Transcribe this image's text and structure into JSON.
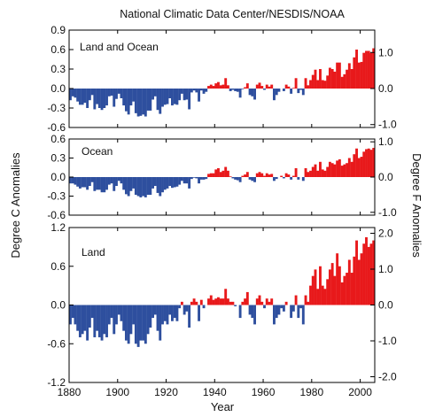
{
  "colors": {
    "positive": "#e8191b",
    "negative": "#2e4f9e",
    "frame": "#000000"
  },
  "chart_data": {
    "type": "bar",
    "title": "National Climatic Data Center/NESDIS/NOAA",
    "xlabel": "Year",
    "ylabel_left": "Degree C Anomalies",
    "ylabel_right": "Degree F Anomalies",
    "xlim": [
      1880,
      2006
    ],
    "x_ticks": [
      1880,
      1900,
      1920,
      1940,
      1960,
      1980,
      2000
    ],
    "x_tick_labels": [
      "1880",
      "1900",
      "1920",
      "1940",
      "1960",
      "1980",
      "2000"
    ],
    "years": [
      1880,
      1881,
      1882,
      1883,
      1884,
      1885,
      1886,
      1887,
      1888,
      1889,
      1890,
      1891,
      1892,
      1893,
      1894,
      1895,
      1896,
      1897,
      1898,
      1899,
      1900,
      1901,
      1902,
      1903,
      1904,
      1905,
      1906,
      1907,
      1908,
      1909,
      1910,
      1911,
      1912,
      1913,
      1914,
      1915,
      1916,
      1917,
      1918,
      1919,
      1920,
      1921,
      1922,
      1923,
      1924,
      1925,
      1926,
      1927,
      1928,
      1929,
      1930,
      1931,
      1932,
      1933,
      1934,
      1935,
      1936,
      1937,
      1938,
      1939,
      1940,
      1941,
      1942,
      1943,
      1944,
      1945,
      1946,
      1947,
      1948,
      1949,
      1950,
      1951,
      1952,
      1953,
      1954,
      1955,
      1956,
      1957,
      1958,
      1959,
      1960,
      1961,
      1962,
      1963,
      1964,
      1965,
      1966,
      1967,
      1968,
      1969,
      1970,
      1971,
      1972,
      1973,
      1974,
      1975,
      1976,
      1977,
      1978,
      1979,
      1980,
      1981,
      1982,
      1983,
      1984,
      1985,
      1986,
      1987,
      1988,
      1989,
      1990,
      1991,
      1992,
      1993,
      1994,
      1995,
      1996,
      1997,
      1998,
      1999,
      2000,
      2001,
      2002,
      2003,
      2004,
      2005
    ],
    "panels": [
      {
        "name": "Land and Ocean",
        "ylim": [
          -0.6,
          0.9
        ],
        "y_ticks": [
          -0.6,
          -0.3,
          0.0,
          0.3,
          0.6,
          0.9
        ],
        "y_tick_labels": [
          "-0.6",
          "-0.3",
          "0.0",
          "0.3",
          "0.6",
          "0.9"
        ],
        "right_ticks_f": [
          -1.0,
          0.0,
          1.0
        ],
        "right_tick_labels": [
          "-1.0",
          "0.0",
          "1.0"
        ],
        "values": [
          -0.18,
          -0.12,
          -0.14,
          -0.2,
          -0.25,
          -0.25,
          -0.22,
          -0.3,
          -0.18,
          -0.1,
          -0.32,
          -0.24,
          -0.3,
          -0.33,
          -0.3,
          -0.26,
          -0.12,
          -0.11,
          -0.28,
          -0.16,
          -0.08,
          -0.15,
          -0.26,
          -0.35,
          -0.4,
          -0.26,
          -0.2,
          -0.38,
          -0.43,
          -0.42,
          -0.4,
          -0.43,
          -0.34,
          -0.34,
          -0.17,
          -0.12,
          -0.33,
          -0.39,
          -0.28,
          -0.25,
          -0.24,
          -0.15,
          -0.26,
          -0.24,
          -0.25,
          -0.18,
          -0.08,
          -0.18,
          -0.17,
          -0.32,
          -0.06,
          -0.03,
          -0.06,
          -0.2,
          -0.03,
          -0.08,
          -0.05,
          0.04,
          0.06,
          0.04,
          0.08,
          0.1,
          0.05,
          0.06,
          0.16,
          0.05,
          -0.04,
          -0.02,
          -0.04,
          -0.05,
          -0.14,
          -0.01,
          0.02,
          0.08,
          -0.1,
          -0.12,
          -0.17,
          0.06,
          0.09,
          0.04,
          -0.02,
          0.06,
          0.03,
          0.06,
          -0.18,
          -0.1,
          -0.05,
          0.0,
          -0.04,
          0.06,
          0.03,
          -0.08,
          0.01,
          0.16,
          -0.07,
          -0.02,
          -0.1,
          0.16,
          0.05,
          0.13,
          0.21,
          0.29,
          0.13,
          0.3,
          0.13,
          0.12,
          0.2,
          0.32,
          0.3,
          0.26,
          0.4,
          0.4,
          0.18,
          0.22,
          0.29,
          0.39,
          0.3,
          0.48,
          0.6,
          0.4,
          0.41,
          0.55,
          0.58,
          0.58,
          0.55,
          0.62
        ]
      },
      {
        "name": "Ocean",
        "ylim": [
          -0.6,
          0.6
        ],
        "y_ticks": [
          -0.6,
          -0.3,
          0.0,
          0.3,
          0.6
        ],
        "y_tick_labels": [
          "-0.6",
          "-0.3",
          "0.0",
          "0.3",
          "0.6"
        ],
        "right_ticks_f": [
          -1.0,
          0.0,
          1.0
        ],
        "right_tick_labels": [
          "-1.0",
          "0.0",
          "1.0"
        ],
        "values": [
          -0.1,
          -0.1,
          -0.12,
          -0.15,
          -0.18,
          -0.16,
          -0.16,
          -0.2,
          -0.14,
          -0.08,
          -0.22,
          -0.2,
          -0.2,
          -0.24,
          -0.24,
          -0.2,
          -0.12,
          -0.1,
          -0.22,
          -0.14,
          -0.06,
          -0.1,
          -0.2,
          -0.27,
          -0.3,
          -0.22,
          -0.18,
          -0.28,
          -0.3,
          -0.32,
          -0.3,
          -0.32,
          -0.28,
          -0.28,
          -0.18,
          -0.14,
          -0.25,
          -0.3,
          -0.24,
          -0.2,
          -0.18,
          -0.14,
          -0.17,
          -0.16,
          -0.15,
          -0.12,
          -0.06,
          -0.1,
          -0.1,
          -0.18,
          -0.03,
          -0.01,
          -0.02,
          -0.1,
          -0.04,
          -0.04,
          -0.03,
          0.05,
          0.06,
          0.06,
          0.12,
          0.14,
          0.08,
          0.1,
          0.16,
          0.1,
          0.01,
          -0.02,
          -0.04,
          -0.05,
          -0.08,
          0.02,
          0.04,
          0.08,
          -0.04,
          -0.06,
          -0.08,
          0.06,
          0.08,
          0.06,
          0.02,
          0.06,
          0.04,
          0.05,
          -0.06,
          -0.03,
          0.0,
          0.02,
          -0.02,
          0.06,
          0.04,
          -0.04,
          0.02,
          0.14,
          -0.04,
          0.0,
          -0.06,
          0.14,
          0.08,
          0.1,
          0.16,
          0.2,
          0.1,
          0.24,
          0.12,
          0.1,
          0.16,
          0.24,
          0.22,
          0.2,
          0.26,
          0.28,
          0.18,
          0.2,
          0.22,
          0.3,
          0.24,
          0.36,
          0.45,
          0.3,
          0.32,
          0.4,
          0.44,
          0.45,
          0.43,
          0.46
        ]
      },
      {
        "name": "Land",
        "ylim": [
          -1.2,
          1.2
        ],
        "y_ticks": [
          -1.2,
          -0.6,
          0.0,
          0.6,
          1.2
        ],
        "y_tick_labels": [
          "-1.2",
          "-0.6",
          "0.0",
          "0.6",
          "1.2"
        ],
        "right_ticks_f": [
          -2.0,
          -1.0,
          0.0,
          1.0,
          2.0
        ],
        "right_tick_labels": [
          "-2.0",
          "-1.0",
          "0.0",
          "1.0",
          "2.0"
        ],
        "values": [
          -0.3,
          -0.2,
          -0.3,
          -0.4,
          -0.5,
          -0.45,
          -0.4,
          -0.55,
          -0.35,
          -0.2,
          -0.5,
          -0.4,
          -0.5,
          -0.55,
          -0.45,
          -0.5,
          -0.3,
          -0.2,
          -0.45,
          -0.3,
          -0.15,
          -0.25,
          -0.4,
          -0.55,
          -0.6,
          -0.45,
          -0.3,
          -0.6,
          -0.65,
          -0.55,
          -0.55,
          -0.6,
          -0.45,
          -0.35,
          -0.2,
          -0.15,
          -0.4,
          -0.55,
          -0.3,
          -0.25,
          -0.3,
          -0.15,
          -0.25,
          -0.2,
          -0.25,
          -0.05,
          0.05,
          -0.15,
          -0.1,
          -0.35,
          0.05,
          0.1,
          0.05,
          -0.25,
          0.08,
          -0.05,
          0.0,
          0.1,
          0.15,
          0.08,
          0.1,
          0.12,
          0.1,
          0.1,
          0.25,
          0.1,
          0.05,
          0.05,
          -0.02,
          0.0,
          -0.2,
          0.05,
          0.1,
          0.2,
          -0.15,
          -0.2,
          -0.3,
          0.1,
          0.15,
          0.05,
          -0.05,
          0.1,
          0.05,
          0.1,
          -0.3,
          -0.2,
          -0.15,
          -0.05,
          -0.1,
          0.05,
          0.0,
          -0.2,
          -0.1,
          0.15,
          -0.2,
          -0.05,
          -0.3,
          0.15,
          0.05,
          0.3,
          0.45,
          0.55,
          0.25,
          0.6,
          0.3,
          0.25,
          0.4,
          0.55,
          0.65,
          0.45,
          0.8,
          0.6,
          0.35,
          0.45,
          0.5,
          0.7,
          0.5,
          0.75,
          1.0,
          0.7,
          0.8,
          0.95,
          1.05,
          0.9,
          0.95,
          1.0
        ]
      }
    ]
  }
}
